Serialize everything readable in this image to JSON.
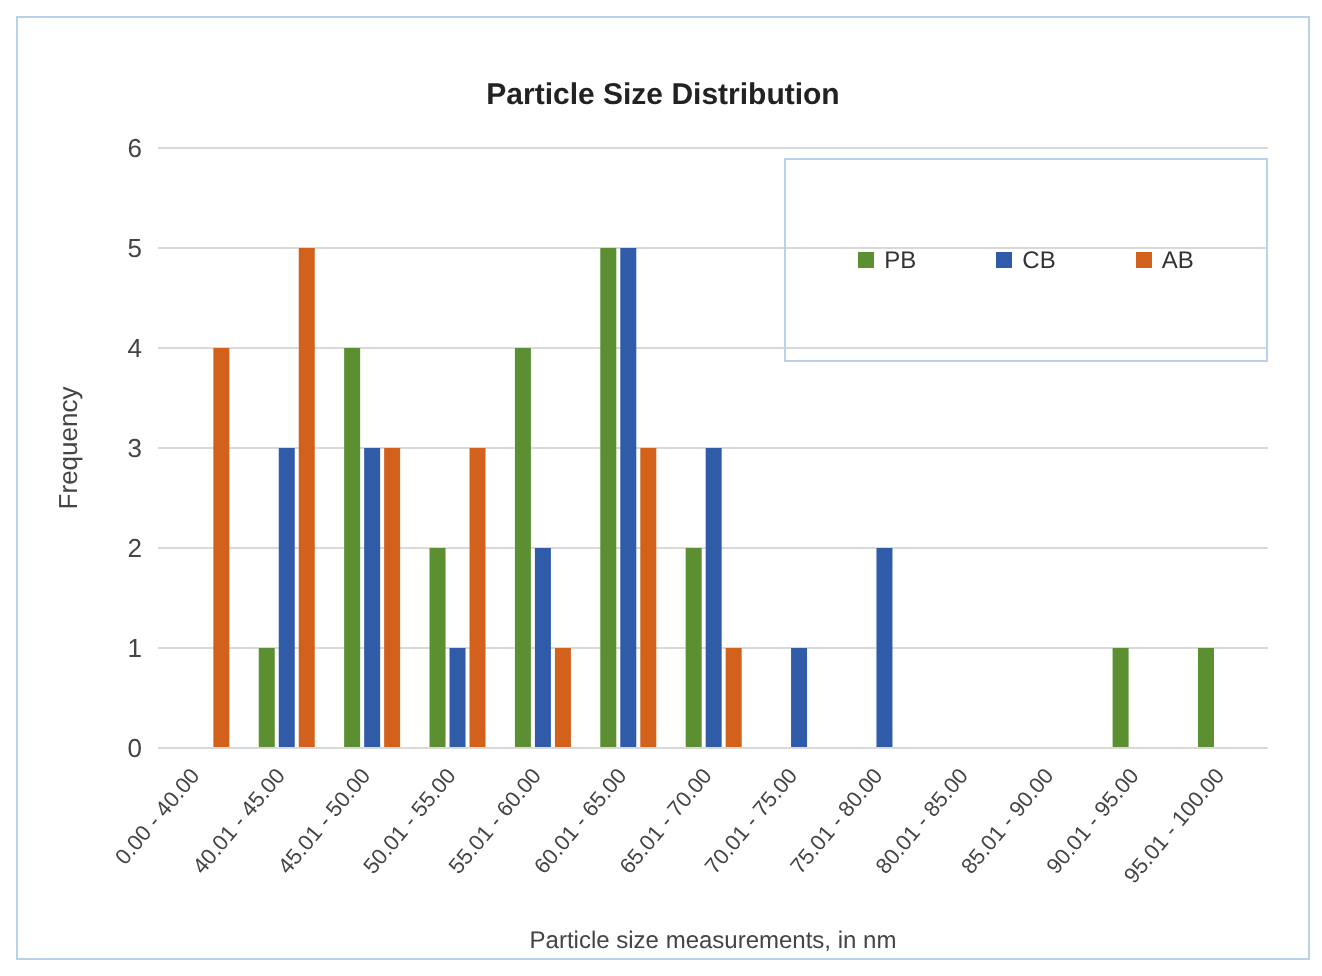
{
  "chart_data": {
    "type": "bar",
    "title": "Particle Size Distribution",
    "xlabel": "Particle size measurements, in nm",
    "ylabel": "Frequency",
    "categories": [
      "0.00 - 40.00",
      "40.01 - 45.00",
      "45.01 - 50.00",
      "50.01 - 55.00",
      "55.01 - 60.00",
      "60.01 - 65.00",
      "65.01 - 70.00",
      "70.01 - 75.00",
      "75.01 - 80.00",
      "80.01 - 85.00",
      "85.01 - 90.00",
      "90.01 - 95.00",
      "95.01 - 100.00"
    ],
    "series": [
      {
        "name": "PB",
        "color": "#5b8f32",
        "values": [
          0,
          1,
          4,
          2,
          4,
          5,
          2,
          0,
          0,
          0,
          0,
          1,
          1
        ]
      },
      {
        "name": "CB",
        "color": "#2f5ba8",
        "values": [
          0,
          3,
          3,
          1,
          2,
          5,
          3,
          1,
          2,
          0,
          0,
          0,
          0
        ]
      },
      {
        "name": "AB",
        "color": "#d2611c",
        "values": [
          4,
          5,
          3,
          3,
          1,
          3,
          1,
          0,
          0,
          0,
          0,
          0,
          0
        ]
      }
    ],
    "ylim": [
      0,
      6
    ],
    "yticks": [
      0,
      1,
      2,
      3,
      4,
      5,
      6
    ],
    "grid": "y",
    "legend": "top right"
  }
}
